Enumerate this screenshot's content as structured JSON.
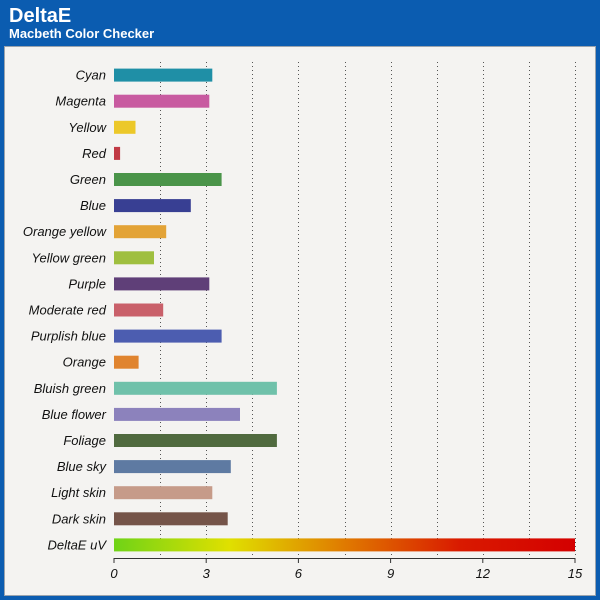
{
  "header": {
    "title": "DeltaE",
    "subtitle": "Macbeth Color Checker"
  },
  "colors": {
    "background": "#0b5cb0",
    "panel": "#f4f3f1"
  },
  "chart_data": {
    "type": "bar",
    "orientation": "horizontal",
    "title": "DeltaE",
    "subtitle": "Macbeth Color Checker",
    "xlim": [
      0,
      15
    ],
    "x_ticks": [
      0,
      3,
      6,
      9,
      12,
      15
    ],
    "grid": "vertical dotted",
    "categories": [
      "Cyan",
      "Magenta",
      "Yellow",
      "Red",
      "Green",
      "Blue",
      "Orange yellow",
      "Yellow green",
      "Purple",
      "Moderate red",
      "Purplish blue",
      "Orange",
      "Bluish green",
      "Blue flower",
      "Foliage",
      "Blue sky",
      "Light skin",
      "Dark skin",
      "DeltaE uV"
    ],
    "values": [
      3.2,
      3.1,
      0.7,
      0.2,
      3.5,
      2.5,
      1.7,
      1.3,
      3.1,
      1.6,
      3.5,
      0.8,
      5.3,
      4.1,
      5.3,
      3.8,
      3.2,
      3.7,
      15
    ],
    "bar_colors": [
      "#1f8fa6",
      "#c85aa0",
      "#ecc829",
      "#c13a45",
      "#4a9449",
      "#383f93",
      "#e3a336",
      "#9fbf3f",
      "#5f3f78",
      "#c9606a",
      "#4c5db0",
      "#e0842f",
      "#6fc1aa",
      "#8c82bc",
      "#506a3f",
      "#5e7aa2",
      "#c69b89",
      "#755449",
      "gradient"
    ],
    "gradient_stops": [
      "#6fd317",
      "#e0e000",
      "#e07a00",
      "#d91a00",
      "#d40000"
    ]
  }
}
